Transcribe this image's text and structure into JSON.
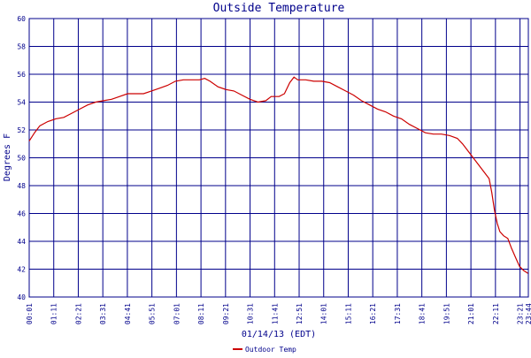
{
  "chart_data": {
    "type": "line",
    "title": "Outside Temperature",
    "xlabel": "01/14/13 (EDT)",
    "ylabel": "Degrees F",
    "ylim": [
      40,
      60
    ],
    "yticks": [
      40,
      42,
      44,
      46,
      48,
      50,
      52,
      54,
      56,
      58,
      60
    ],
    "xticks": [
      "00:01",
      "01:11",
      "02:21",
      "03:31",
      "04:41",
      "05:51",
      "07:01",
      "08:11",
      "09:21",
      "10:31",
      "11:41",
      "12:51",
      "14:01",
      "15:11",
      "16:21",
      "17:31",
      "18:41",
      "19:51",
      "21:01",
      "22:11",
      "23:21",
      "23:44"
    ],
    "grid": true,
    "legend_position": "bottom-center",
    "colors": {
      "line": "#cc0000",
      "grid": "#00008b",
      "text": "#00008b",
      "background": "#ffffff"
    },
    "x_units": "minutes since 00:01",
    "series": [
      {
        "name": "Outdoor Temp",
        "points": [
          [
            0,
            51.2
          ],
          [
            10,
            51.8
          ],
          [
            20,
            52.3
          ],
          [
            35,
            52.6
          ],
          [
            50,
            52.8
          ],
          [
            65,
            52.9
          ],
          [
            80,
            53.2
          ],
          [
            95,
            53.5
          ],
          [
            110,
            53.8
          ],
          [
            125,
            54.0
          ],
          [
            140,
            54.1
          ],
          [
            155,
            54.2
          ],
          [
            170,
            54.4
          ],
          [
            185,
            54.6
          ],
          [
            200,
            54.6
          ],
          [
            215,
            54.6
          ],
          [
            230,
            54.8
          ],
          [
            245,
            55.0
          ],
          [
            260,
            55.2
          ],
          [
            275,
            55.5
          ],
          [
            290,
            55.6
          ],
          [
            305,
            55.6
          ],
          [
            320,
            55.6
          ],
          [
            330,
            55.7
          ],
          [
            340,
            55.5
          ],
          [
            355,
            55.1
          ],
          [
            370,
            54.9
          ],
          [
            385,
            54.8
          ],
          [
            400,
            54.5
          ],
          [
            415,
            54.2
          ],
          [
            430,
            54.0
          ],
          [
            445,
            54.1
          ],
          [
            455,
            54.4
          ],
          [
            470,
            54.4
          ],
          [
            480,
            54.6
          ],
          [
            490,
            55.4
          ],
          [
            498,
            55.8
          ],
          [
            505,
            55.6
          ],
          [
            520,
            55.6
          ],
          [
            535,
            55.5
          ],
          [
            550,
            55.5
          ],
          [
            565,
            55.4
          ],
          [
            580,
            55.1
          ],
          [
            595,
            54.8
          ],
          [
            610,
            54.5
          ],
          [
            625,
            54.1
          ],
          [
            640,
            53.8
          ],
          [
            655,
            53.5
          ],
          [
            670,
            53.3
          ],
          [
            685,
            53.0
          ],
          [
            700,
            52.8
          ],
          [
            715,
            52.4
          ],
          [
            730,
            52.1
          ],
          [
            745,
            51.8
          ],
          [
            760,
            51.7
          ],
          [
            775,
            51.7
          ],
          [
            790,
            51.6
          ],
          [
            805,
            51.4
          ],
          [
            815,
            51.0
          ],
          [
            825,
            50.5
          ],
          [
            835,
            50.0
          ],
          [
            845,
            49.5
          ],
          [
            855,
            49.0
          ],
          [
            865,
            48.5
          ],
          [
            870,
            47.5
          ],
          [
            875,
            46.2
          ],
          [
            880,
            45.3
          ],
          [
            885,
            44.7
          ],
          [
            892,
            44.4
          ],
          [
            900,
            44.2
          ],
          [
            907,
            43.5
          ],
          [
            915,
            42.8
          ],
          [
            922,
            42.2
          ],
          [
            930,
            41.9
          ],
          [
            938,
            41.7
          ]
        ]
      }
    ]
  }
}
